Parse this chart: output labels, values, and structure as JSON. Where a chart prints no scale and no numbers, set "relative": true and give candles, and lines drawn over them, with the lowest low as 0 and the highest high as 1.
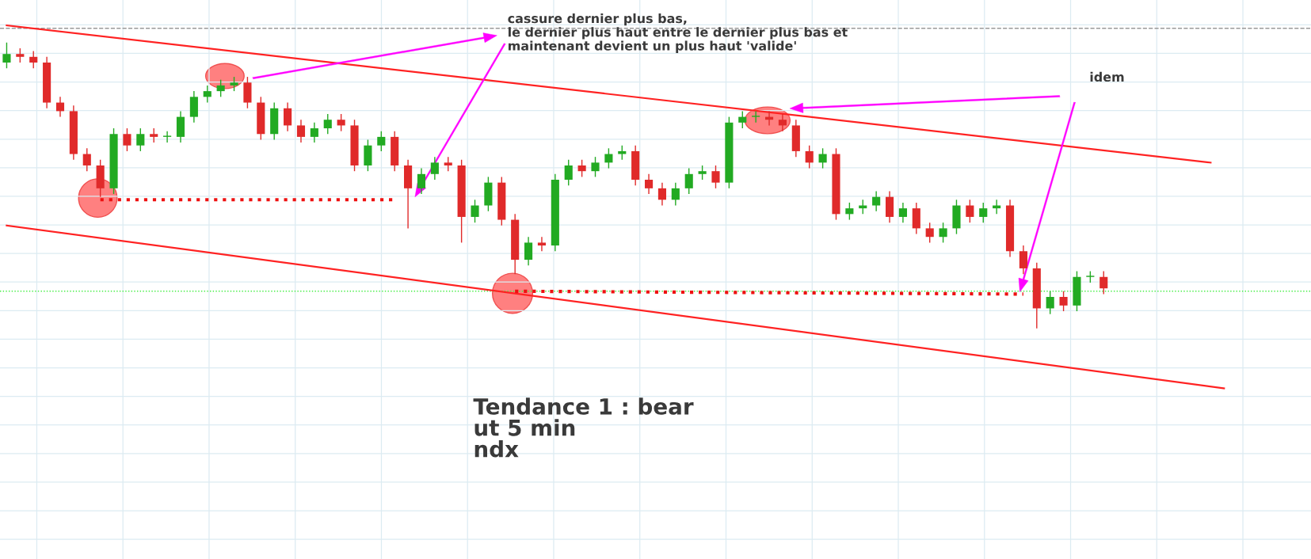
{
  "chart_data": {
    "type": "candlestick",
    "relative": true,
    "grid": true,
    "tick_labels": false,
    "categories": [
      null,
      null,
      null,
      null,
      null,
      null,
      null,
      null,
      null,
      null,
      null,
      null,
      null,
      null,
      null,
      null,
      null,
      null,
      null,
      null,
      null,
      null,
      null,
      null,
      null,
      null,
      null,
      null,
      null,
      null,
      null,
      null,
      null,
      null,
      null,
      null,
      null,
      null,
      null,
      null,
      null,
      null,
      null,
      null,
      null,
      null,
      null,
      null,
      null,
      null,
      null,
      null,
      null,
      null,
      null,
      null,
      null,
      null,
      null,
      null,
      null,
      null,
      null,
      null,
      null,
      null,
      null,
      null,
      null,
      null,
      null,
      null,
      null,
      null,
      null,
      null,
      null,
      null,
      null,
      null,
      null,
      null,
      null,
      null,
      null,
      null,
      null,
      null,
      null,
      null,
      null,
      null,
      null,
      null,
      null,
      null,
      null,
      null
    ],
    "ohlc": [
      [
        0.93,
        1.0,
        0.91,
        0.96
      ],
      [
        0.96,
        0.98,
        0.93,
        0.95
      ],
      [
        0.95,
        0.97,
        0.91,
        0.93
      ],
      [
        0.93,
        0.95,
        0.77,
        0.79
      ],
      [
        0.79,
        0.81,
        0.74,
        0.76
      ],
      [
        0.76,
        0.78,
        0.59,
        0.61
      ],
      [
        0.61,
        0.63,
        0.55,
        0.57
      ],
      [
        0.57,
        0.59,
        0.46,
        0.49
      ],
      [
        0.49,
        0.7,
        0.47,
        0.68
      ],
      [
        0.68,
        0.7,
        0.62,
        0.64
      ],
      [
        0.64,
        0.7,
        0.62,
        0.68
      ],
      [
        0.68,
        0.7,
        0.65,
        0.67
      ],
      [
        0.67,
        0.69,
        0.65,
        0.67
      ],
      [
        0.67,
        0.76,
        0.65,
        0.74
      ],
      [
        0.74,
        0.83,
        0.72,
        0.81
      ],
      [
        0.81,
        0.85,
        0.79,
        0.83
      ],
      [
        0.83,
        0.87,
        0.81,
        0.85
      ],
      [
        0.85,
        0.88,
        0.83,
        0.86
      ],
      [
        0.86,
        0.88,
        0.77,
        0.79
      ],
      [
        0.79,
        0.81,
        0.66,
        0.68
      ],
      [
        0.68,
        0.79,
        0.66,
        0.77
      ],
      [
        0.77,
        0.79,
        0.69,
        0.71
      ],
      [
        0.71,
        0.73,
        0.65,
        0.67
      ],
      [
        0.67,
        0.72,
        0.65,
        0.7
      ],
      [
        0.7,
        0.75,
        0.68,
        0.73
      ],
      [
        0.73,
        0.75,
        0.69,
        0.71
      ],
      [
        0.71,
        0.73,
        0.55,
        0.57
      ],
      [
        0.57,
        0.66,
        0.55,
        0.64
      ],
      [
        0.64,
        0.69,
        0.62,
        0.67
      ],
      [
        0.67,
        0.69,
        0.55,
        0.57
      ],
      [
        0.57,
        0.59,
        0.35,
        0.49
      ],
      [
        0.49,
        0.56,
        0.47,
        0.54
      ],
      [
        0.54,
        0.6,
        0.52,
        0.58
      ],
      [
        0.58,
        0.6,
        0.55,
        0.57
      ],
      [
        0.57,
        0.59,
        0.3,
        0.39
      ],
      [
        0.39,
        0.45,
        0.37,
        0.43
      ],
      [
        0.43,
        0.53,
        0.41,
        0.51
      ],
      [
        0.51,
        0.53,
        0.36,
        0.38
      ],
      [
        0.38,
        0.4,
        0.19,
        0.24
      ],
      [
        0.24,
        0.32,
        0.22,
        0.3
      ],
      [
        0.3,
        0.32,
        0.27,
        0.29
      ],
      [
        0.29,
        0.54,
        0.27,
        0.52
      ],
      [
        0.52,
        0.59,
        0.5,
        0.57
      ],
      [
        0.57,
        0.59,
        0.53,
        0.55
      ],
      [
        0.55,
        0.6,
        0.53,
        0.58
      ],
      [
        0.58,
        0.63,
        0.56,
        0.61
      ],
      [
        0.61,
        0.64,
        0.59,
        0.62
      ],
      [
        0.62,
        0.64,
        0.5,
        0.52
      ],
      [
        0.52,
        0.54,
        0.47,
        0.49
      ],
      [
        0.49,
        0.51,
        0.43,
        0.45
      ],
      [
        0.45,
        0.51,
        0.43,
        0.49
      ],
      [
        0.49,
        0.56,
        0.47,
        0.54
      ],
      [
        0.54,
        0.57,
        0.52,
        0.55
      ],
      [
        0.55,
        0.57,
        0.49,
        0.51
      ],
      [
        0.51,
        0.74,
        0.49,
        0.72
      ],
      [
        0.72,
        0.76,
        0.7,
        0.74
      ],
      [
        0.74,
        0.76,
        0.72,
        0.74
      ],
      [
        0.74,
        0.76,
        0.71,
        0.73
      ],
      [
        0.73,
        0.75,
        0.69,
        0.71
      ],
      [
        0.71,
        0.73,
        0.6,
        0.62
      ],
      [
        0.62,
        0.64,
        0.56,
        0.58
      ],
      [
        0.58,
        0.63,
        0.56,
        0.61
      ],
      [
        0.61,
        0.63,
        0.38,
        0.4
      ],
      [
        0.4,
        0.44,
        0.38,
        0.42
      ],
      [
        0.42,
        0.45,
        0.4,
        0.43
      ],
      [
        0.43,
        0.48,
        0.41,
        0.46
      ],
      [
        0.46,
        0.48,
        0.37,
        0.39
      ],
      [
        0.39,
        0.44,
        0.37,
        0.42
      ],
      [
        0.42,
        0.44,
        0.33,
        0.35
      ],
      [
        0.35,
        0.37,
        0.3,
        0.32
      ],
      [
        0.32,
        0.37,
        0.3,
        0.35
      ],
      [
        0.35,
        0.45,
        0.33,
        0.43
      ],
      [
        0.43,
        0.45,
        0.37,
        0.39
      ],
      [
        0.39,
        0.44,
        0.37,
        0.42
      ],
      [
        0.42,
        0.45,
        0.4,
        0.43
      ],
      [
        0.43,
        0.45,
        0.25,
        0.27
      ],
      [
        0.27,
        0.29,
        0.19,
        0.21
      ],
      [
        0.21,
        0.23,
        0.0,
        0.07
      ],
      [
        0.07,
        0.13,
        0.05,
        0.11
      ],
      [
        0.11,
        0.13,
        0.06,
        0.08
      ],
      [
        0.08,
        0.2,
        0.06,
        0.18
      ],
      [
        0.18,
        0.2,
        0.16,
        0.18
      ],
      [
        0.18,
        0.2,
        0.12,
        0.14
      ],
      null,
      null,
      null,
      null,
      null,
      null,
      null,
      null,
      null,
      null,
      null,
      null,
      null,
      null,
      null
    ],
    "series": [
      {
        "type": "line",
        "color": "#ff2222",
        "line_style": "solid",
        "values": [
          1.06,
          null,
          null,
          null,
          null,
          null,
          null,
          null,
          null,
          null,
          null,
          null,
          null,
          null,
          null,
          null,
          null,
          null,
          null,
          null,
          null,
          null,
          null,
          null,
          null,
          null,
          null,
          null,
          null,
          null,
          null,
          null,
          null,
          null,
          null,
          null,
          null,
          null,
          null,
          null,
          null,
          null,
          null,
          null,
          null,
          null,
          null,
          null,
          null,
          null,
          null,
          null,
          null,
          null,
          null,
          null,
          null,
          null,
          null,
          null,
          null,
          null,
          null,
          null,
          null,
          null,
          null,
          null,
          null,
          null,
          null,
          null,
          null,
          null,
          null,
          null,
          null,
          null,
          null,
          null,
          null,
          null,
          null,
          null,
          null,
          null,
          null,
          null,
          null,
          null,
          0.58,
          null,
          null,
          null,
          null,
          null,
          null,
          null
        ]
      },
      {
        "type": "line",
        "color": "#ff2222",
        "line_style": "solid",
        "values": [
          0.36,
          null,
          null,
          null,
          null,
          null,
          null,
          null,
          null,
          null,
          null,
          null,
          null,
          null,
          null,
          null,
          null,
          null,
          null,
          null,
          null,
          null,
          null,
          null,
          null,
          null,
          null,
          null,
          null,
          null,
          null,
          null,
          null,
          null,
          null,
          null,
          null,
          null,
          null,
          null,
          null,
          null,
          null,
          null,
          null,
          null,
          null,
          null,
          null,
          null,
          null,
          null,
          null,
          null,
          null,
          null,
          null,
          null,
          null,
          null,
          null,
          null,
          null,
          null,
          null,
          null,
          null,
          null,
          null,
          null,
          null,
          null,
          null,
          null,
          null,
          null,
          null,
          null,
          null,
          null,
          null,
          null,
          null,
          null,
          null,
          null,
          null,
          null,
          null,
          null,
          null,
          -0.21,
          null,
          null,
          null,
          null,
          null,
          null
        ]
      },
      {
        "type": "line",
        "color": "#ee1111",
        "line_style": "dotted",
        "values": [
          null,
          null,
          null,
          null,
          null,
          null,
          null,
          0.45,
          null,
          null,
          null,
          null,
          null,
          null,
          null,
          null,
          null,
          null,
          null,
          null,
          null,
          null,
          null,
          null,
          null,
          null,
          null,
          null,
          null,
          0.45,
          null,
          null,
          null,
          null,
          null,
          null,
          null,
          null,
          null,
          null,
          null,
          null,
          null,
          null,
          null,
          null,
          null,
          null,
          null,
          null,
          null,
          null,
          null,
          null,
          null,
          null,
          null,
          null,
          null,
          null,
          null,
          null,
          null,
          null,
          null,
          null,
          null,
          null,
          null,
          null,
          null,
          null,
          null,
          null,
          null,
          null,
          null,
          null,
          null,
          null,
          null,
          null,
          null,
          null,
          null,
          null,
          null,
          null,
          null,
          null,
          null,
          null,
          null,
          null,
          null,
          null,
          null,
          null
        ]
      },
      {
        "type": "line",
        "color": "#ee1111",
        "line_style": "dotted",
        "values": [
          null,
          null,
          null,
          null,
          null,
          null,
          null,
          null,
          null,
          null,
          null,
          null,
          null,
          null,
          null,
          null,
          null,
          null,
          null,
          null,
          null,
          null,
          null,
          null,
          null,
          null,
          null,
          null,
          null,
          null,
          null,
          null,
          null,
          null,
          null,
          null,
          null,
          null,
          0.13,
          null,
          null,
          null,
          null,
          null,
          null,
          null,
          null,
          null,
          null,
          null,
          null,
          null,
          null,
          null,
          null,
          null,
          null,
          null,
          null,
          null,
          null,
          null,
          null,
          null,
          null,
          null,
          null,
          null,
          null,
          null,
          null,
          null,
          null,
          null,
          null,
          null,
          0.12,
          null,
          null,
          null,
          null,
          null,
          null,
          null,
          null,
          null,
          null,
          null,
          null,
          null,
          null,
          null,
          null,
          null,
          null,
          null,
          null,
          null
        ]
      }
    ],
    "ref_lines": [
      {
        "axis": "y",
        "value": 0.13,
        "color": "#44ee44",
        "line_style": "dotted"
      },
      {
        "axis": "y",
        "value": 1.05,
        "color": "#999999",
        "line_style": "dashed"
      }
    ],
    "annotations": [
      "cassure dernier plus bas,\nle dernier plus haut entre le dernier plus bas et\nmaintenant devient un plus haut 'valide'",
      "idem",
      "Tendance 1 : bear\nut 5 min\nndx"
    ]
  }
}
